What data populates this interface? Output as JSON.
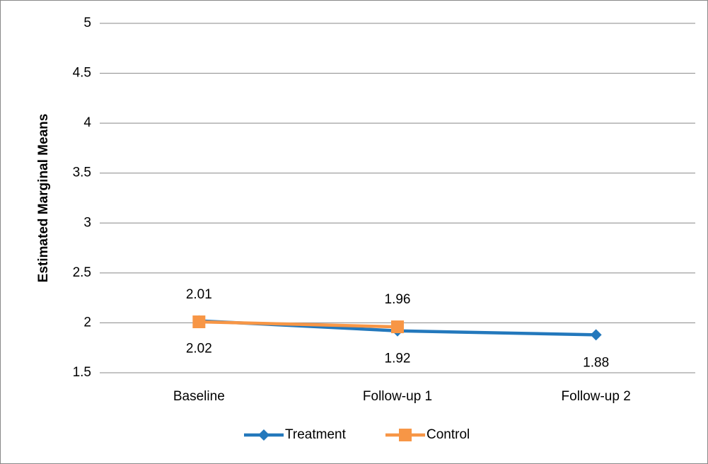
{
  "chart_data": {
    "type": "line",
    "y_label": "Estimated Marginal Means",
    "categories": [
      "Baseline",
      "Follow-up 1",
      "Follow-up 2"
    ],
    "series": [
      {
        "name": "Treatment",
        "color": "#2378bc",
        "marker": "diamond",
        "values": [
          2.02,
          1.92,
          1.88
        ]
      },
      {
        "name": "Control",
        "color": "#f79646",
        "marker": "square",
        "values": [
          2.01,
          1.96,
          null
        ]
      }
    ],
    "ylim": [
      1.5,
      5
    ],
    "yticks": [
      1.5,
      2,
      2.5,
      3,
      3.5,
      4,
      4.5,
      5
    ],
    "grid": true,
    "legend": "bottom"
  }
}
